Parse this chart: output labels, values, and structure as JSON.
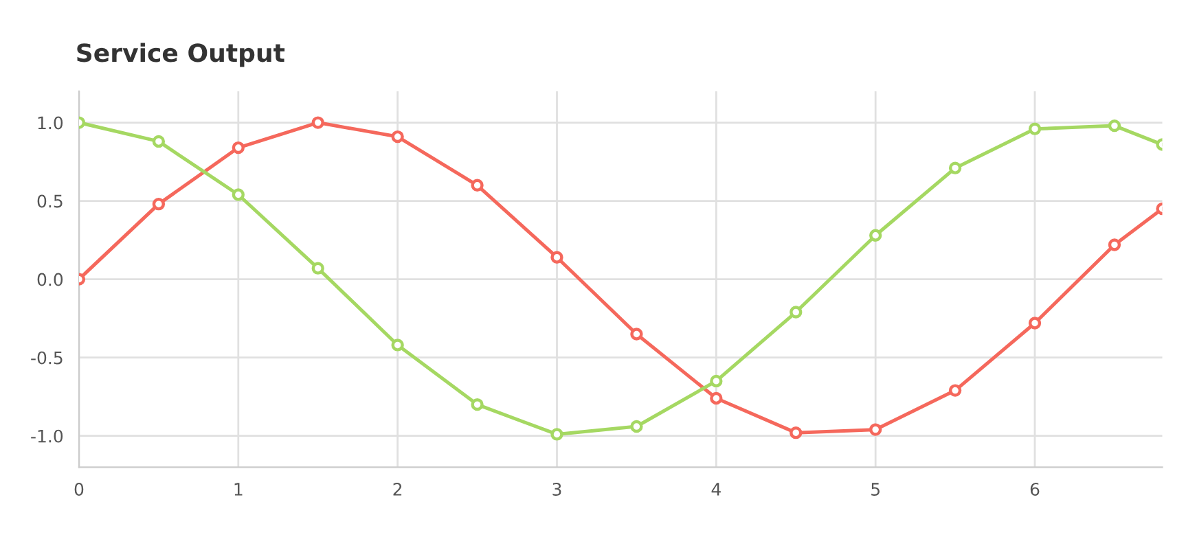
{
  "chart_data": {
    "type": "line",
    "title": "Service Output",
    "x": [
      0,
      0.5,
      1,
      1.5,
      2,
      2.5,
      3,
      3.5,
      4,
      4.5,
      5,
      5.5,
      6,
      6.5,
      6.8
    ],
    "series": [
      {
        "color": "#f5685c",
        "values": [
          0,
          0.48,
          0.84,
          1.0,
          0.91,
          0.6,
          0.14,
          -0.35,
          -0.76,
          -0.98,
          -0.96,
          -0.71,
          -0.28,
          0.22,
          0.45
        ]
      },
      {
        "color": "#a5d862",
        "values": [
          1.0,
          0.88,
          0.54,
          0.07,
          -0.42,
          -0.8,
          -0.99,
          -0.94,
          -0.65,
          -0.21,
          0.28,
          0.71,
          0.96,
          0.98,
          0.86
        ]
      }
    ],
    "xlim": [
      0,
      6.8
    ],
    "xticks": [
      0,
      1,
      2,
      3,
      4,
      5,
      6
    ],
    "ylim": [
      -1.2,
      1.2
    ],
    "yticks": [
      {
        "value": -1,
        "label": "-1.0"
      },
      {
        "value": -0.5,
        "label": "-0.5"
      },
      {
        "value": 0,
        "label": "0.0"
      },
      {
        "value": 0.5,
        "label": "0.5"
      },
      {
        "value": 1,
        "label": "1.0"
      }
    ],
    "grid": true,
    "marker": "circle",
    "line_style": "solid",
    "legend": false
  }
}
